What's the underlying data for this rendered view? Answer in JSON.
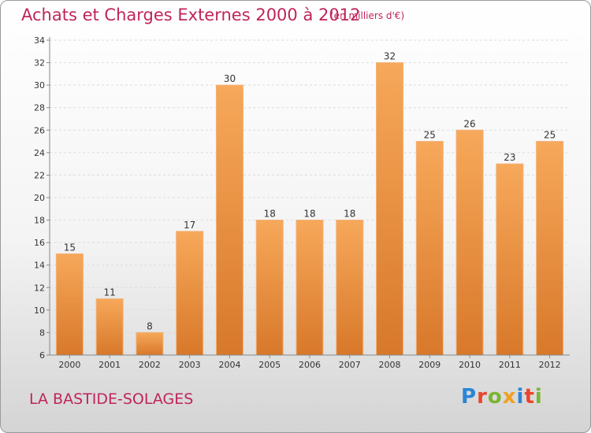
{
  "header": {
    "title": "Achats et Charges Externes 2000 à 2012",
    "unit": "(en milliers d'€)"
  },
  "footer": {
    "city": "LA BASTIDE-SOLAGES",
    "logo": "Proxiti"
  },
  "colors": {
    "accent": "#c0245c",
    "bar_top": "#f7a85a",
    "bar_bottom": "#d8782a"
  },
  "chart_data": {
    "type": "bar",
    "categories": [
      "2000",
      "2001",
      "2002",
      "2003",
      "2004",
      "2005",
      "2006",
      "2007",
      "2008",
      "2009",
      "2010",
      "2011",
      "2012"
    ],
    "values": [
      15,
      11,
      8,
      17,
      30,
      18,
      18,
      18,
      32,
      25,
      26,
      23,
      25
    ],
    "ylim": [
      6,
      34
    ],
    "yticks": [
      6,
      8,
      10,
      12,
      14,
      16,
      18,
      20,
      22,
      24,
      26,
      28,
      30,
      32,
      34
    ],
    "grid": true,
    "data_labels": true
  }
}
